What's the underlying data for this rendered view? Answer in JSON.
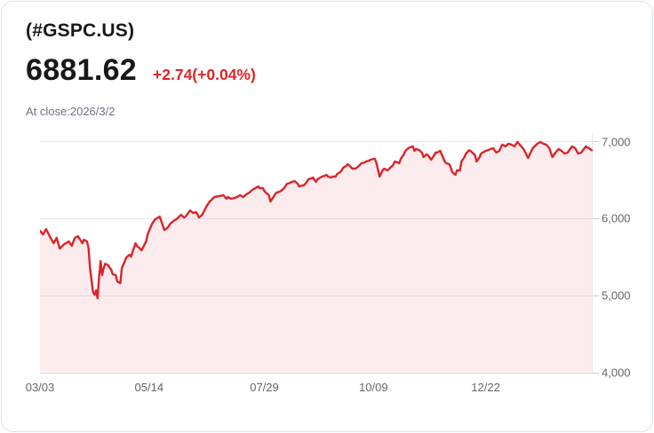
{
  "header": {
    "symbol": "(#GSPC.US)",
    "price": "6881.62",
    "change": "+2.74(+0.04%)",
    "as_of": "At close:2026/3/2"
  },
  "colors": {
    "line": "#da2429",
    "area_fill": "rgba(218,36,41,0.09)",
    "change_text": "#e02424",
    "grid": "#e8e8e8",
    "axis": "#d7d7d7",
    "tick_text": "#666666",
    "card_border": "#dbe2ee"
  },
  "chart_data": {
    "type": "area",
    "title": "#GSPC.US one-year price chart",
    "xlabel": "",
    "ylabel": "",
    "legend": "none",
    "grid": "horizontal",
    "ylim": [
      4000,
      7000
    ],
    "xlim_days": [
      0,
      364
    ],
    "y_ticks": [
      {
        "v": 7000,
        "label": "7,000"
      },
      {
        "v": 6000,
        "label": "6,000"
      },
      {
        "v": 5000,
        "label": "5,000"
      },
      {
        "v": 4000,
        "label": "4,000"
      }
    ],
    "x_ticks": [
      {
        "d": 0,
        "label": "03/03"
      },
      {
        "d": 72,
        "label": "05/14"
      },
      {
        "d": 148,
        "label": "07/29"
      },
      {
        "d": 220,
        "label": "10/09"
      },
      {
        "d": 294,
        "label": "12/22"
      }
    ],
    "points": [
      [
        0,
        5836
      ],
      [
        2,
        5789
      ],
      [
        4,
        5858
      ],
      [
        7,
        5743
      ],
      [
        9,
        5674
      ],
      [
        11,
        5743
      ],
      [
        13,
        5605
      ],
      [
        16,
        5663
      ],
      [
        19,
        5697
      ],
      [
        21,
        5640
      ],
      [
        23,
        5743
      ],
      [
        25,
        5766
      ],
      [
        28,
        5674
      ],
      [
        29,
        5720
      ],
      [
        31,
        5697
      ],
      [
        32,
        5616
      ],
      [
        33,
        5351
      ],
      [
        35,
        5040
      ],
      [
        36,
        5005
      ],
      [
        37,
        5063
      ],
      [
        38,
        4959
      ],
      [
        39,
        5236
      ],
      [
        40,
        5443
      ],
      [
        41,
        5259
      ],
      [
        42,
        5351
      ],
      [
        43,
        5409
      ],
      [
        45,
        5386
      ],
      [
        47,
        5328
      ],
      [
        48,
        5271
      ],
      [
        50,
        5259
      ],
      [
        51,
        5178
      ],
      [
        53,
        5155
      ],
      [
        54,
        5351
      ],
      [
        57,
        5490
      ],
      [
        59,
        5524
      ],
      [
        60,
        5501
      ],
      [
        63,
        5674
      ],
      [
        64,
        5640
      ],
      [
        66,
        5605
      ],
      [
        67,
        5582
      ],
      [
        70,
        5697
      ],
      [
        71,
        5789
      ],
      [
        74,
        5928
      ],
      [
        76,
        5985
      ],
      [
        79,
        6020
      ],
      [
        80,
        5962
      ],
      [
        82,
        5847
      ],
      [
        84,
        5870
      ],
      [
        86,
        5928
      ],
      [
        88,
        5962
      ],
      [
        90,
        5985
      ],
      [
        93,
        6043
      ],
      [
        95,
        6008
      ],
      [
        96,
        6020
      ],
      [
        99,
        6100
      ],
      [
        101,
        6066
      ],
      [
        103,
        6077
      ],
      [
        105,
        6008
      ],
      [
        107,
        6043
      ],
      [
        110,
        6158
      ],
      [
        112,
        6216
      ],
      [
        115,
        6273
      ],
      [
        118,
        6285
      ],
      [
        121,
        6297
      ],
      [
        123,
        6251
      ],
      [
        124,
        6273
      ],
      [
        126,
        6251
      ],
      [
        128,
        6262
      ],
      [
        130,
        6273
      ],
      [
        132,
        6297
      ],
      [
        134,
        6273
      ],
      [
        136,
        6308
      ],
      [
        138,
        6331
      ],
      [
        140,
        6366
      ],
      [
        142,
        6389
      ],
      [
        144,
        6412
      ],
      [
        145,
        6389
      ],
      [
        147,
        6389
      ],
      [
        148,
        6354
      ],
      [
        149,
        6331
      ],
      [
        151,
        6297
      ],
      [
        152,
        6216
      ],
      [
        154,
        6273
      ],
      [
        155,
        6308
      ],
      [
        156,
        6331
      ],
      [
        158,
        6343
      ],
      [
        159,
        6354
      ],
      [
        161,
        6389
      ],
      [
        163,
        6446
      ],
      [
        165,
        6458
      ],
      [
        166,
        6470
      ],
      [
        168,
        6481
      ],
      [
        170,
        6446
      ],
      [
        171,
        6412
      ],
      [
        173,
        6424
      ],
      [
        174,
        6424
      ],
      [
        176,
        6470
      ],
      [
        177,
        6504
      ],
      [
        179,
        6516
      ],
      [
        180,
        6527
      ],
      [
        182,
        6470
      ],
      [
        183,
        6504
      ],
      [
        186,
        6539
      ],
      [
        188,
        6550
      ],
      [
        189,
        6562
      ],
      [
        190,
        6539
      ],
      [
        192,
        6527
      ],
      [
        193,
        6539
      ],
      [
        195,
        6539
      ],
      [
        196,
        6573
      ],
      [
        198,
        6597
      ],
      [
        199,
        6620
      ],
      [
        200,
        6654
      ],
      [
        202,
        6677
      ],
      [
        203,
        6700
      ],
      [
        205,
        6666
      ],
      [
        206,
        6643
      ],
      [
        208,
        6643
      ],
      [
        209,
        6654
      ],
      [
        211,
        6689
      ],
      [
        212,
        6712
      ],
      [
        214,
        6723
      ],
      [
        215,
        6735
      ],
      [
        217,
        6746
      ],
      [
        218,
        6758
      ],
      [
        220,
        6769
      ],
      [
        221,
        6769
      ],
      [
        222,
        6712
      ],
      [
        224,
        6539
      ],
      [
        226,
        6620
      ],
      [
        227,
        6643
      ],
      [
        229,
        6620
      ],
      [
        230,
        6631
      ],
      [
        231,
        6654
      ],
      [
        233,
        6689
      ],
      [
        234,
        6735
      ],
      [
        236,
        6723
      ],
      [
        237,
        6712
      ],
      [
        238,
        6769
      ],
      [
        240,
        6827
      ],
      [
        241,
        6873
      ],
      [
        243,
        6908
      ],
      [
        244,
        6919
      ],
      [
        246,
        6931
      ],
      [
        247,
        6873
      ],
      [
        248,
        6896
      ],
      [
        250,
        6885
      ],
      [
        252,
        6850
      ],
      [
        253,
        6793
      ],
      [
        255,
        6827
      ],
      [
        256,
        6816
      ],
      [
        258,
        6758
      ],
      [
        260,
        6816
      ],
      [
        261,
        6850
      ],
      [
        262,
        6850
      ],
      [
        264,
        6873
      ],
      [
        265,
        6827
      ],
      [
        267,
        6735
      ],
      [
        268,
        6712
      ],
      [
        270,
        6700
      ],
      [
        271,
        6654
      ],
      [
        272,
        6597
      ],
      [
        274,
        6562
      ],
      [
        275,
        6620
      ],
      [
        277,
        6620
      ],
      [
        278,
        6735
      ],
      [
        280,
        6793
      ],
      [
        281,
        6839
      ],
      [
        283,
        6880
      ],
      [
        284,
        6873
      ],
      [
        287,
        6816
      ],
      [
        288,
        6735
      ],
      [
        290,
        6793
      ],
      [
        291,
        6839
      ],
      [
        293,
        6862
      ],
      [
        294,
        6873
      ],
      [
        296,
        6885
      ],
      [
        297,
        6896
      ],
      [
        299,
        6908
      ],
      [
        301,
        6850
      ],
      [
        303,
        6873
      ],
      [
        305,
        6954
      ],
      [
        307,
        6931
      ],
      [
        309,
        6965
      ],
      [
        311,
        6954
      ],
      [
        313,
        6931
      ],
      [
        315,
        6988
      ],
      [
        316,
        6965
      ],
      [
        319,
        6896
      ],
      [
        322,
        6781
      ],
      [
        325,
        6908
      ],
      [
        328,
        6965
      ],
      [
        330,
        6988
      ],
      [
        332,
        6965
      ],
      [
        334,
        6954
      ],
      [
        336,
        6908
      ],
      [
        338,
        6793
      ],
      [
        340,
        6850
      ],
      [
        342,
        6896
      ],
      [
        344,
        6873
      ],
      [
        346,
        6839
      ],
      [
        348,
        6850
      ],
      [
        351,
        6931
      ],
      [
        353,
        6908
      ],
      [
        355,
        6839
      ],
      [
        357,
        6850
      ],
      [
        360,
        6931
      ],
      [
        362,
        6908
      ],
      [
        364,
        6882
      ]
    ],
    "last_close": 6881.62
  }
}
